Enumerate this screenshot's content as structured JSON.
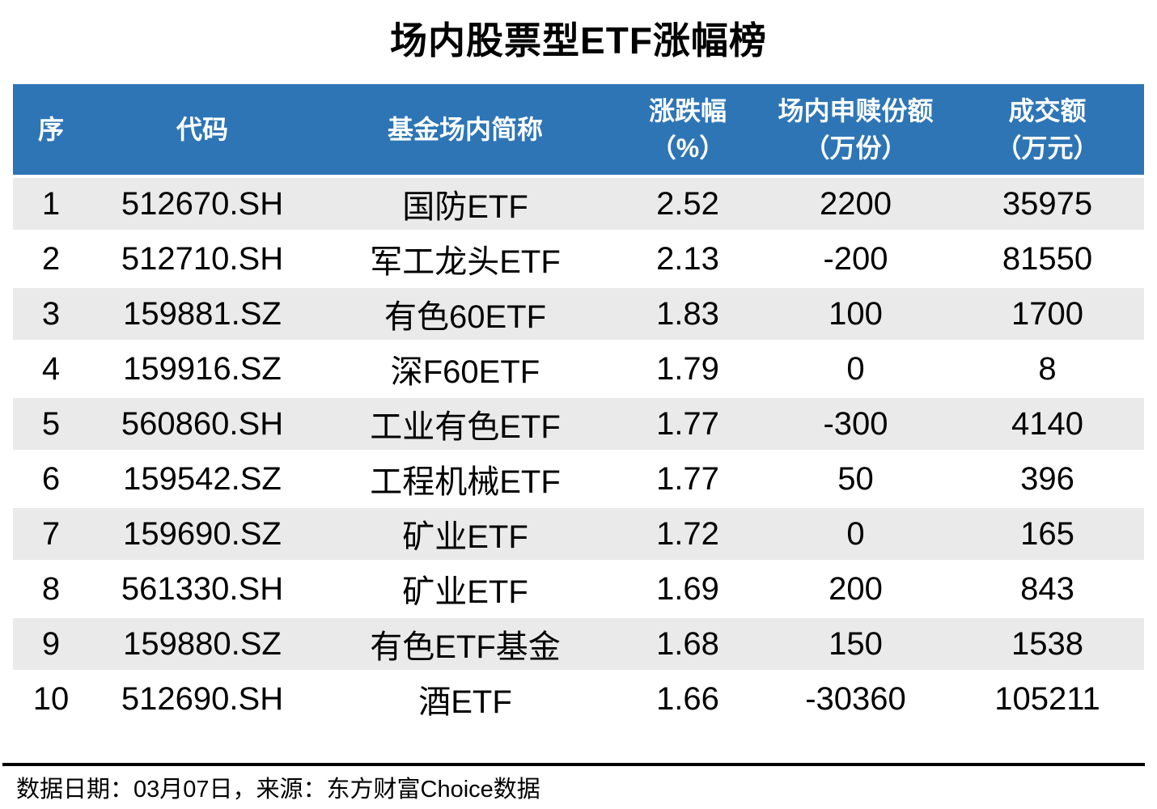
{
  "title": "场内股票型ETF涨幅榜",
  "chart_data": {
    "type": "table",
    "title": "场内股票型ETF涨幅榜",
    "columns": [
      {
        "l1": "序",
        "l2": ""
      },
      {
        "l1": "代码",
        "l2": ""
      },
      {
        "l1": "基金场内简称",
        "l2": ""
      },
      {
        "l1": "涨跌幅",
        "l2": "（%）"
      },
      {
        "l1": "场内申赎份额",
        "l2": "（万份）"
      },
      {
        "l1": "成交额",
        "l2": "（万元）"
      }
    ],
    "rows": [
      [
        "1",
        "512670.SH",
        "国防ETF",
        "2.52",
        "2200",
        "35975"
      ],
      [
        "2",
        "512710.SH",
        "军工龙头ETF",
        "2.13",
        "-200",
        "81550"
      ],
      [
        "3",
        "159881.SZ",
        "有色60ETF",
        "1.83",
        "100",
        "1700"
      ],
      [
        "4",
        "159916.SZ",
        "深F60ETF",
        "1.79",
        "0",
        "8"
      ],
      [
        "5",
        "560860.SH",
        "工业有色ETF",
        "1.77",
        "-300",
        "4140"
      ],
      [
        "6",
        "159542.SZ",
        "工程机械ETF",
        "1.77",
        "50",
        "396"
      ],
      [
        "7",
        "159690.SZ",
        "矿业ETF",
        "1.72",
        "0",
        "165"
      ],
      [
        "8",
        "561330.SH",
        "矿业ETF",
        "1.69",
        "200",
        "843"
      ],
      [
        "9",
        "159880.SZ",
        "有色ETF基金",
        "1.68",
        "150",
        "1538"
      ],
      [
        "10",
        "512690.SH",
        "酒ETF",
        "1.66",
        "-30360",
        "105211"
      ]
    ]
  },
  "footer": {
    "source_text": "数据日期：03月07日，来源：东方财富Choice数据"
  },
  "colors": {
    "header_bg": "#2E75B6",
    "header_text": "#FFFFFF",
    "row_alt_bg": "#EAEAEA",
    "body_text": "#000000",
    "footer_rule": "#000000"
  }
}
